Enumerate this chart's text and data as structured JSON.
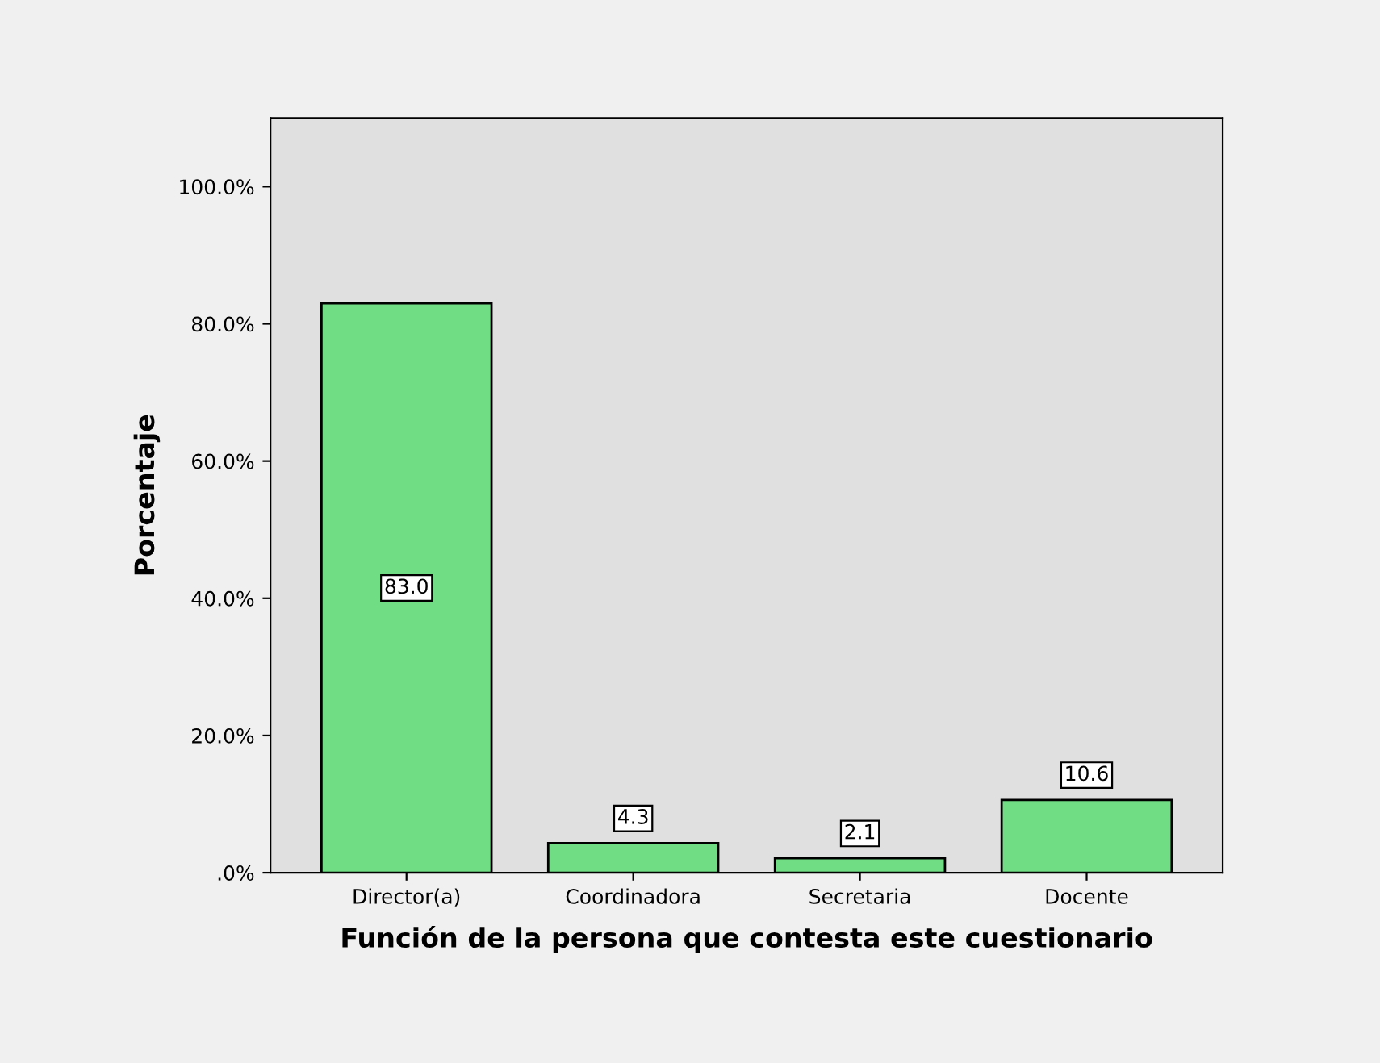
{
  "chart_data": {
    "type": "bar",
    "xlabel": "Función de la persona que contesta este cuestionario",
    "ylabel": "Porcentaje",
    "categories": [
      "Director(a)",
      "Coordinadora",
      "Secretaria",
      "Docente"
    ],
    "values": [
      83.0,
      4.3,
      2.1,
      10.6
    ],
    "color": "#70dc84",
    "value_labels": [
      "83.0",
      "4.3",
      "2.1",
      "10.6"
    ],
    "ylim": [
      0,
      110
    ],
    "yticks": [
      {
        "value": 0,
        "label": ".0%"
      },
      {
        "value": 20,
        "label": "20.0%"
      },
      {
        "value": 40,
        "label": "40.0%"
      },
      {
        "value": 60,
        "label": "60.0%"
      },
      {
        "value": 80,
        "label": "80.0%"
      },
      {
        "value": 100,
        "label": "100.0%"
      }
    ],
    "grid": false
  }
}
